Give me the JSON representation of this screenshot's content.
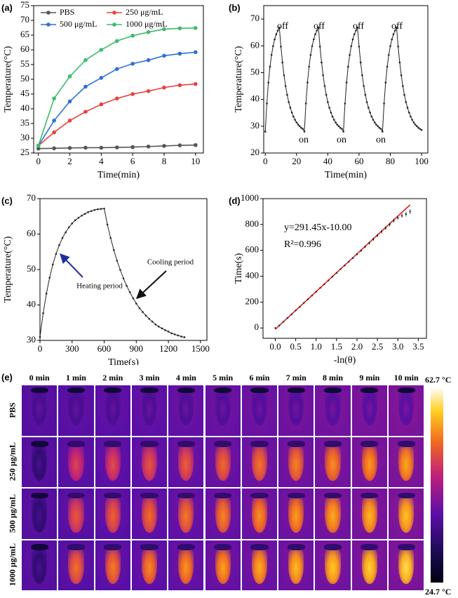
{
  "chart_data": [
    {
      "panel": "(a)",
      "type": "line",
      "xlabel": "Time(min)",
      "ylabel": "Temperature(°C)",
      "x": [
        0,
        1,
        2,
        3,
        4,
        5,
        6,
        7,
        8,
        9,
        10
      ],
      "series": [
        {
          "name": "PBS",
          "color": "#555555",
          "values": [
            26.5,
            26.6,
            26.7,
            26.8,
            26.8,
            26.9,
            27,
            27.2,
            27.4,
            27.6,
            27.7
          ]
        },
        {
          "name": "250 μg/mL",
          "color": "#e8413e",
          "values": [
            27.5,
            32,
            36,
            39,
            41.5,
            43.5,
            45,
            46,
            47.2,
            48,
            48.4
          ]
        },
        {
          "name": "500 μg/mL",
          "color": "#2f6fd6",
          "values": [
            27.5,
            36,
            42.5,
            47.5,
            50.5,
            53.5,
            55.3,
            56.5,
            58,
            58.7,
            59.2
          ]
        },
        {
          "name": "1000 μg/mL",
          "color": "#3dbb6d",
          "values": [
            27.5,
            43.5,
            51,
            56.5,
            60,
            63,
            64.8,
            66,
            67,
            67.3,
            67.4
          ]
        }
      ],
      "xlim": [
        -0.3,
        10.5
      ],
      "ylim": [
        25,
        75
      ],
      "xticks": [
        0,
        2,
        4,
        6,
        8,
        10
      ],
      "yticks": [
        25,
        30,
        35,
        40,
        45,
        50,
        55,
        60,
        65,
        70,
        75
      ],
      "legend": "top-left"
    },
    {
      "panel": "(b)",
      "type": "line",
      "xlabel": "Time(min)",
      "ylabel": "Temperature(°C)",
      "color": "#222222",
      "x": [
        0,
        1,
        2,
        3,
        4,
        5,
        6,
        7,
        8,
        9,
        10,
        11,
        12,
        13,
        14,
        15,
        16,
        17,
        18,
        19,
        20,
        21,
        22,
        23,
        24,
        25,
        26,
        27,
        28,
        29,
        30,
        31,
        32,
        33,
        34,
        35,
        36,
        37,
        38,
        39,
        40,
        41,
        42,
        43,
        44,
        45,
        46,
        47,
        48,
        49,
        50,
        51,
        52,
        53,
        54,
        55,
        56,
        57,
        58,
        59,
        60,
        61,
        62,
        63,
        64,
        65,
        66,
        67,
        68,
        69,
        70,
        71,
        72,
        73,
        74,
        75,
        76,
        77,
        78,
        79,
        80,
        81,
        82,
        83,
        84,
        85,
        86,
        87,
        88,
        89,
        90,
        91,
        92,
        93,
        94,
        95,
        96,
        97,
        98,
        99,
        100
      ],
      "values": [
        28,
        38.5,
        46.3,
        52.2,
        56.6,
        59.9,
        62.4,
        64.3,
        65.7,
        66.8,
        59.7,
        53.8,
        49,
        45,
        41.7,
        39,
        36.9,
        35.1,
        33.6,
        32.4,
        31.4,
        30.6,
        30,
        29.4,
        29,
        28,
        38.5,
        46.3,
        52.2,
        56.6,
        59.9,
        62.4,
        64.3,
        65.7,
        66.8,
        59.7,
        53.8,
        49,
        45,
        41.7,
        39,
        36.9,
        35.1,
        33.6,
        32.4,
        31.4,
        30.6,
        30,
        29.4,
        29,
        28,
        38.5,
        46.3,
        52.2,
        56.6,
        59.9,
        62.4,
        64.3,
        65.7,
        66.8,
        59.7,
        53.8,
        49,
        45,
        41.7,
        39,
        36.9,
        35.1,
        33.6,
        32.4,
        31.4,
        30.6,
        30,
        29.4,
        29,
        28,
        38.5,
        46.3,
        52.2,
        56.6,
        59.9,
        62.4,
        64.3,
        65.7,
        66.8,
        59.7,
        53.8,
        49,
        45,
        41.7,
        39,
        36.9,
        35.1,
        33.6,
        32.4,
        31.4,
        30.6,
        30,
        29.4,
        29,
        28.6
      ],
      "xlim": [
        -1,
        104
      ],
      "ylim": [
        20,
        75
      ],
      "xticks": [
        0,
        20,
        40,
        60,
        80,
        100
      ],
      "yticks": [
        20,
        30,
        40,
        50,
        60,
        70
      ],
      "annotations": [
        "off",
        "off",
        "off",
        "off",
        "on",
        "on",
        "on"
      ]
    },
    {
      "panel": "(c)",
      "type": "line",
      "xlabel": "Time(s)",
      "ylabel": "Temperature(°C)",
      "color": "#222222",
      "x": [
        0,
        30,
        60,
        90,
        120,
        150,
        180,
        210,
        240,
        270,
        300,
        330,
        360,
        390,
        420,
        450,
        480,
        510,
        540,
        570,
        600,
        630,
        660,
        690,
        720,
        750,
        780,
        810,
        840,
        870,
        900,
        930,
        960,
        990,
        1020,
        1050,
        1080,
        1110,
        1140,
        1170,
        1200,
        1230,
        1260,
        1290,
        1320,
        1350
      ],
      "values": [
        31,
        37.7,
        43.2,
        47.7,
        51.4,
        54.4,
        56.9,
        58.9,
        60.5,
        61.9,
        63,
        63.9,
        64.6,
        65.2,
        65.7,
        66.2,
        66.5,
        66.8,
        67,
        67.1,
        67.2,
        62.7,
        58.9,
        55.5,
        52.5,
        49.9,
        47.5,
        45.4,
        43.6,
        41.9,
        40.4,
        39.1,
        38,
        37,
        36.1,
        35.3,
        34.5,
        33.9,
        33.4,
        32.9,
        32.5,
        32,
        31.7,
        31.4,
        31.1,
        30.9
      ],
      "xlim": [
        0,
        1560
      ],
      "ylim": [
        30,
        70
      ],
      "xticks": [
        0,
        300,
        600,
        900,
        1200,
        1500
      ],
      "yticks": [
        30,
        40,
        50,
        60,
        70
      ],
      "annotations": [
        "Heating period",
        "Cooling period"
      ]
    },
    {
      "panel": "(d)",
      "type": "scatter",
      "xlabel": "-ln(θ)",
      "ylabel": "Time(s)",
      "color": "#111111",
      "fit_color": "#e02020",
      "x": [
        0,
        0.1,
        0.2,
        0.3,
        0.4,
        0.5,
        0.6,
        0.7,
        0.8,
        0.9,
        1,
        1.1,
        1.2,
        1.3,
        1.4,
        1.5,
        1.6,
        1.7,
        1.8,
        1.9,
        2,
        2.1,
        2.2,
        2.3,
        2.4,
        2.5,
        2.6,
        2.7,
        2.8,
        2.9,
        3,
        3.1,
        3.2,
        3.3
      ],
      "values": [
        0,
        19,
        48,
        77,
        105,
        135,
        163,
        194,
        222,
        250,
        280,
        310,
        338,
        368,
        396,
        425,
        455,
        483,
        512,
        540,
        570,
        598,
        628,
        656,
        686,
        715,
        745,
        772,
        800,
        830,
        852,
        868,
        880,
        900
      ],
      "errors": [
        3,
        3,
        3,
        3,
        3,
        3,
        3,
        3,
        3,
        3,
        4,
        4,
        4,
        4,
        4,
        5,
        5,
        5,
        6,
        6,
        8,
        8,
        10,
        10,
        12,
        12,
        14,
        14,
        15,
        15,
        16,
        16,
        18,
        18
      ],
      "fit_x": [
        0,
        3.3
      ],
      "fit_values": [
        -10,
        951.8
      ],
      "xlim": [
        -0.3,
        3.7
      ],
      "ylim": [
        -80,
        1000
      ],
      "xticks": [
        {
          "value": 0,
          "label": "0.0"
        },
        0.5,
        {
          "value": 1,
          "label": "1.0"
        },
        1.5,
        {
          "value": 2,
          "label": "2.0"
        },
        2.5,
        {
          "value": 3,
          "label": "3.0"
        },
        3.5
      ],
      "yticks": [
        0,
        200,
        400,
        600,
        800,
        1000
      ],
      "annotations": [
        "y=291.45x-10.00",
        "R²=0.996"
      ]
    }
  ],
  "thermal_images": {
    "panel": "(e)",
    "columns": [
      "0 min",
      "1 min",
      "2 min",
      "3 min",
      "4 min",
      "5 min",
      "6 min",
      "7 min",
      "8 min",
      "9 min",
      "10 min"
    ],
    "rows": [
      "PBS",
      "250 μg/mL",
      "500 μg/mL",
      "1000 μg/mL"
    ],
    "colorbar_max": "62.7 °C",
    "colorbar_min": "24.7 °C"
  }
}
